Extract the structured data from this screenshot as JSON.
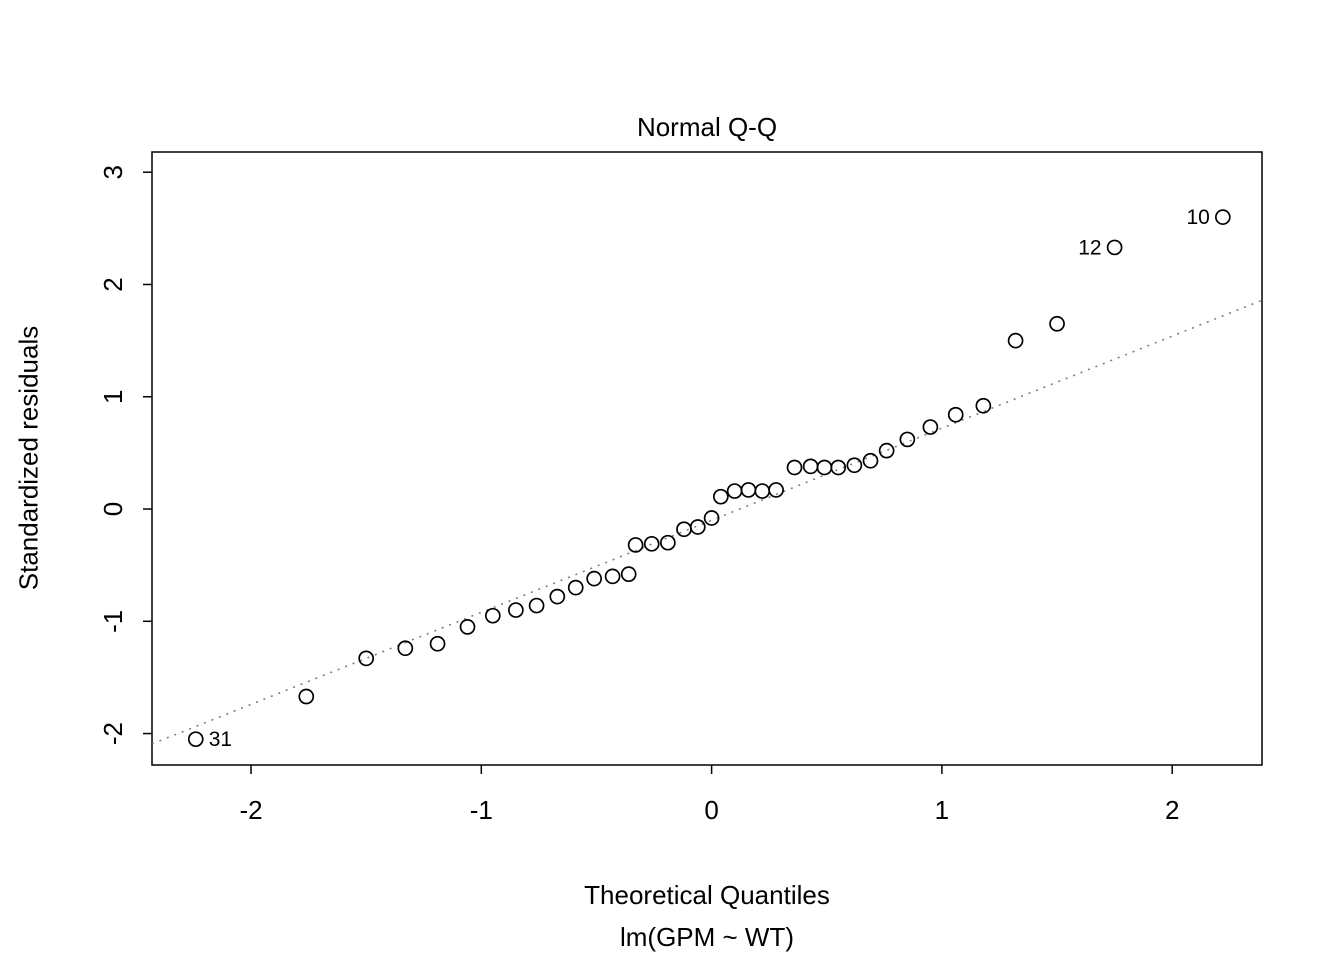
{
  "chart_data": {
    "type": "scatter",
    "title": "Normal Q-Q",
    "xlabel": "Theoretical Quantiles",
    "sublabel": "lm(GPM ~ WT)",
    "ylabel": "Standardized residuals",
    "xlim": [
      -2.43,
      2.39
    ],
    "ylim": [
      -2.28,
      3.18
    ],
    "xticks": [
      -2,
      -1,
      0,
      1,
      2
    ],
    "yticks": [
      -2,
      -1,
      0,
      1,
      2,
      3
    ],
    "grid": false,
    "legend": false,
    "ref_line": {
      "slope": 0.82,
      "intercept": -0.1,
      "style": "dotted",
      "color": "#808080"
    },
    "marker": {
      "shape": "open-circle",
      "color": "#000000",
      "radius": 7
    },
    "points": [
      {
        "x": -2.24,
        "y": -2.05,
        "label": "31",
        "label_side": "right"
      },
      {
        "x": -1.76,
        "y": -1.67
      },
      {
        "x": -1.5,
        "y": -1.33
      },
      {
        "x": -1.33,
        "y": -1.24
      },
      {
        "x": -1.19,
        "y": -1.2
      },
      {
        "x": -1.06,
        "y": -1.05
      },
      {
        "x": -0.95,
        "y": -0.95
      },
      {
        "x": -0.85,
        "y": -0.9
      },
      {
        "x": -0.76,
        "y": -0.86
      },
      {
        "x": -0.67,
        "y": -0.78
      },
      {
        "x": -0.59,
        "y": -0.7
      },
      {
        "x": -0.51,
        "y": -0.62
      },
      {
        "x": -0.43,
        "y": -0.6
      },
      {
        "x": -0.36,
        "y": -0.58
      },
      {
        "x": -0.33,
        "y": -0.32
      },
      {
        "x": -0.26,
        "y": -0.31
      },
      {
        "x": -0.19,
        "y": -0.3
      },
      {
        "x": -0.12,
        "y": -0.18
      },
      {
        "x": -0.06,
        "y": -0.16
      },
      {
        "x": 0.0,
        "y": -0.08
      },
      {
        "x": 0.04,
        "y": 0.11
      },
      {
        "x": 0.1,
        "y": 0.16
      },
      {
        "x": 0.16,
        "y": 0.17
      },
      {
        "x": 0.22,
        "y": 0.16
      },
      {
        "x": 0.28,
        "y": 0.17
      },
      {
        "x": 0.36,
        "y": 0.37
      },
      {
        "x": 0.43,
        "y": 0.38
      },
      {
        "x": 0.49,
        "y": 0.37
      },
      {
        "x": 0.55,
        "y": 0.37
      },
      {
        "x": 0.62,
        "y": 0.39
      },
      {
        "x": 0.69,
        "y": 0.43
      },
      {
        "x": 0.76,
        "y": 0.52
      },
      {
        "x": 0.85,
        "y": 0.62
      },
      {
        "x": 0.95,
        "y": 0.73
      },
      {
        "x": 1.06,
        "y": 0.84
      },
      {
        "x": 1.18,
        "y": 0.92
      },
      {
        "x": 1.32,
        "y": 1.5
      },
      {
        "x": 1.5,
        "y": 1.65
      },
      {
        "x": 1.75,
        "y": 2.33,
        "label": "12",
        "label_side": "left"
      },
      {
        "x": 2.22,
        "y": 2.6,
        "label": "10",
        "label_side": "left"
      }
    ]
  }
}
